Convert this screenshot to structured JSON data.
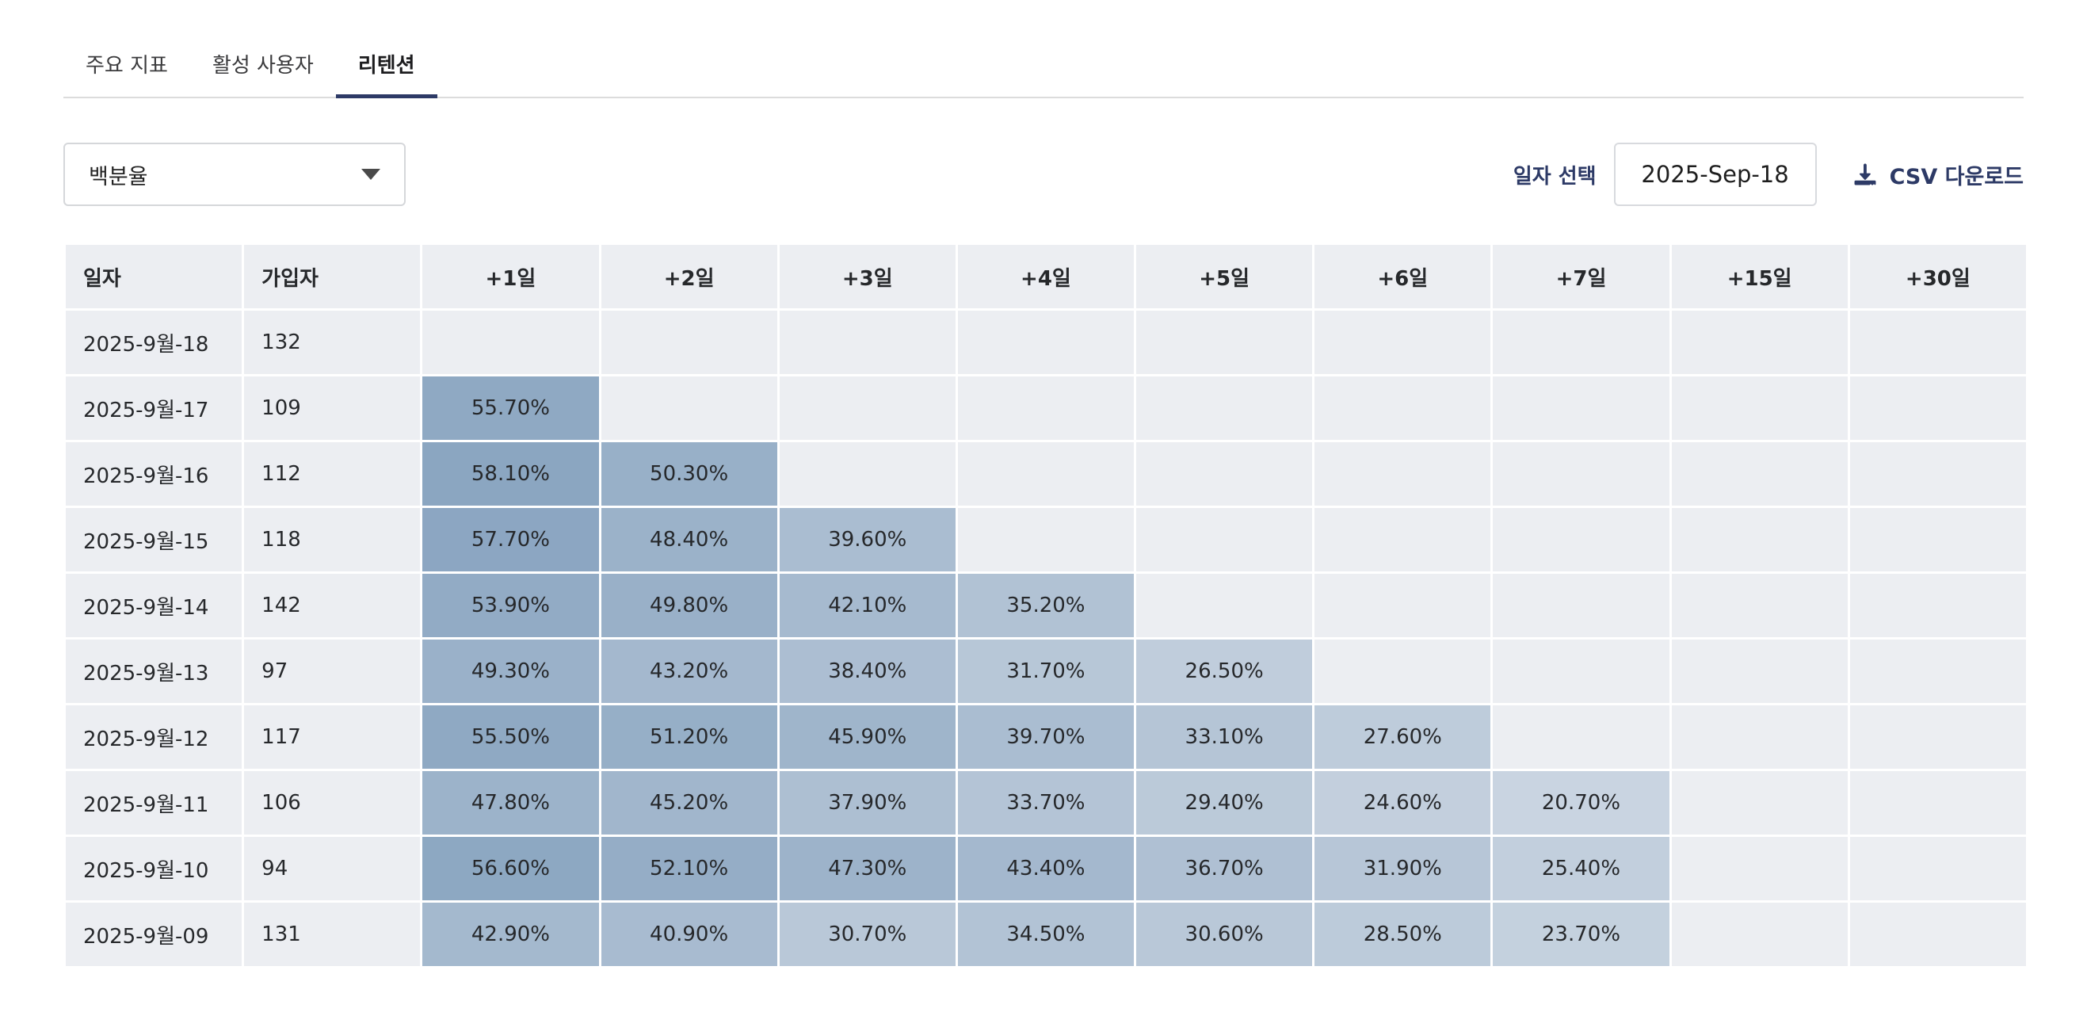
{
  "colors": {
    "accent_navy": "#2d3a66",
    "cell_base": "#45729e",
    "cell_bg": "#eceef2",
    "separator": "#ffffff",
    "box_border": "#d5d7da",
    "tab_divider": "#dcdcdc"
  },
  "tabs": {
    "items": [
      {
        "label": "주요 지표",
        "active": false
      },
      {
        "label": "활성 사용자",
        "active": false
      },
      {
        "label": "리텐션",
        "active": true
      }
    ]
  },
  "toolbar": {
    "metric_select": {
      "value": "백분율",
      "icon": "chevron-down-icon"
    },
    "date_picker": {
      "label": "일자 선택",
      "value": "2025-Sep-18"
    },
    "csv_button": {
      "label": "CSV 다운로드",
      "icon": "download-icon"
    }
  },
  "table": {
    "columns": [
      "일자",
      "가입자",
      "+1일",
      "+2일",
      "+3일",
      "+4일",
      "+5일",
      "+6일",
      "+7일",
      "+15일",
      "+30일"
    ],
    "rows": [
      {
        "date": "2025-9월-18",
        "signups": "132",
        "retention": [
          null,
          null,
          null,
          null,
          null,
          null,
          null,
          null,
          null
        ]
      },
      {
        "date": "2025-9월-17",
        "signups": "109",
        "retention": [
          55.7,
          null,
          null,
          null,
          null,
          null,
          null,
          null,
          null
        ]
      },
      {
        "date": "2025-9월-16",
        "signups": "112",
        "retention": [
          58.1,
          50.3,
          null,
          null,
          null,
          null,
          null,
          null,
          null
        ]
      },
      {
        "date": "2025-9월-15",
        "signups": "118",
        "retention": [
          57.7,
          48.4,
          39.6,
          null,
          null,
          null,
          null,
          null,
          null
        ]
      },
      {
        "date": "2025-9월-14",
        "signups": "142",
        "retention": [
          53.9,
          49.8,
          42.1,
          35.2,
          null,
          null,
          null,
          null,
          null
        ]
      },
      {
        "date": "2025-9월-13",
        "signups": "97",
        "retention": [
          49.3,
          43.2,
          38.4,
          31.7,
          26.5,
          null,
          null,
          null,
          null
        ]
      },
      {
        "date": "2025-9월-12",
        "signups": "117",
        "retention": [
          55.5,
          51.2,
          45.9,
          39.7,
          33.1,
          27.6,
          null,
          null,
          null
        ]
      },
      {
        "date": "2025-9월-11",
        "signups": "106",
        "retention": [
          47.8,
          45.2,
          37.9,
          33.7,
          29.4,
          24.6,
          20.7,
          null,
          null
        ]
      },
      {
        "date": "2025-9월-10",
        "signups": "94",
        "retention": [
          56.6,
          52.1,
          47.3,
          43.4,
          36.7,
          31.9,
          25.4,
          null,
          null
        ]
      },
      {
        "date": "2025-9월-09",
        "signups": "131",
        "retention": [
          42.9,
          40.9,
          30.7,
          34.5,
          30.6,
          28.5,
          23.7,
          null,
          null
        ]
      }
    ]
  }
}
